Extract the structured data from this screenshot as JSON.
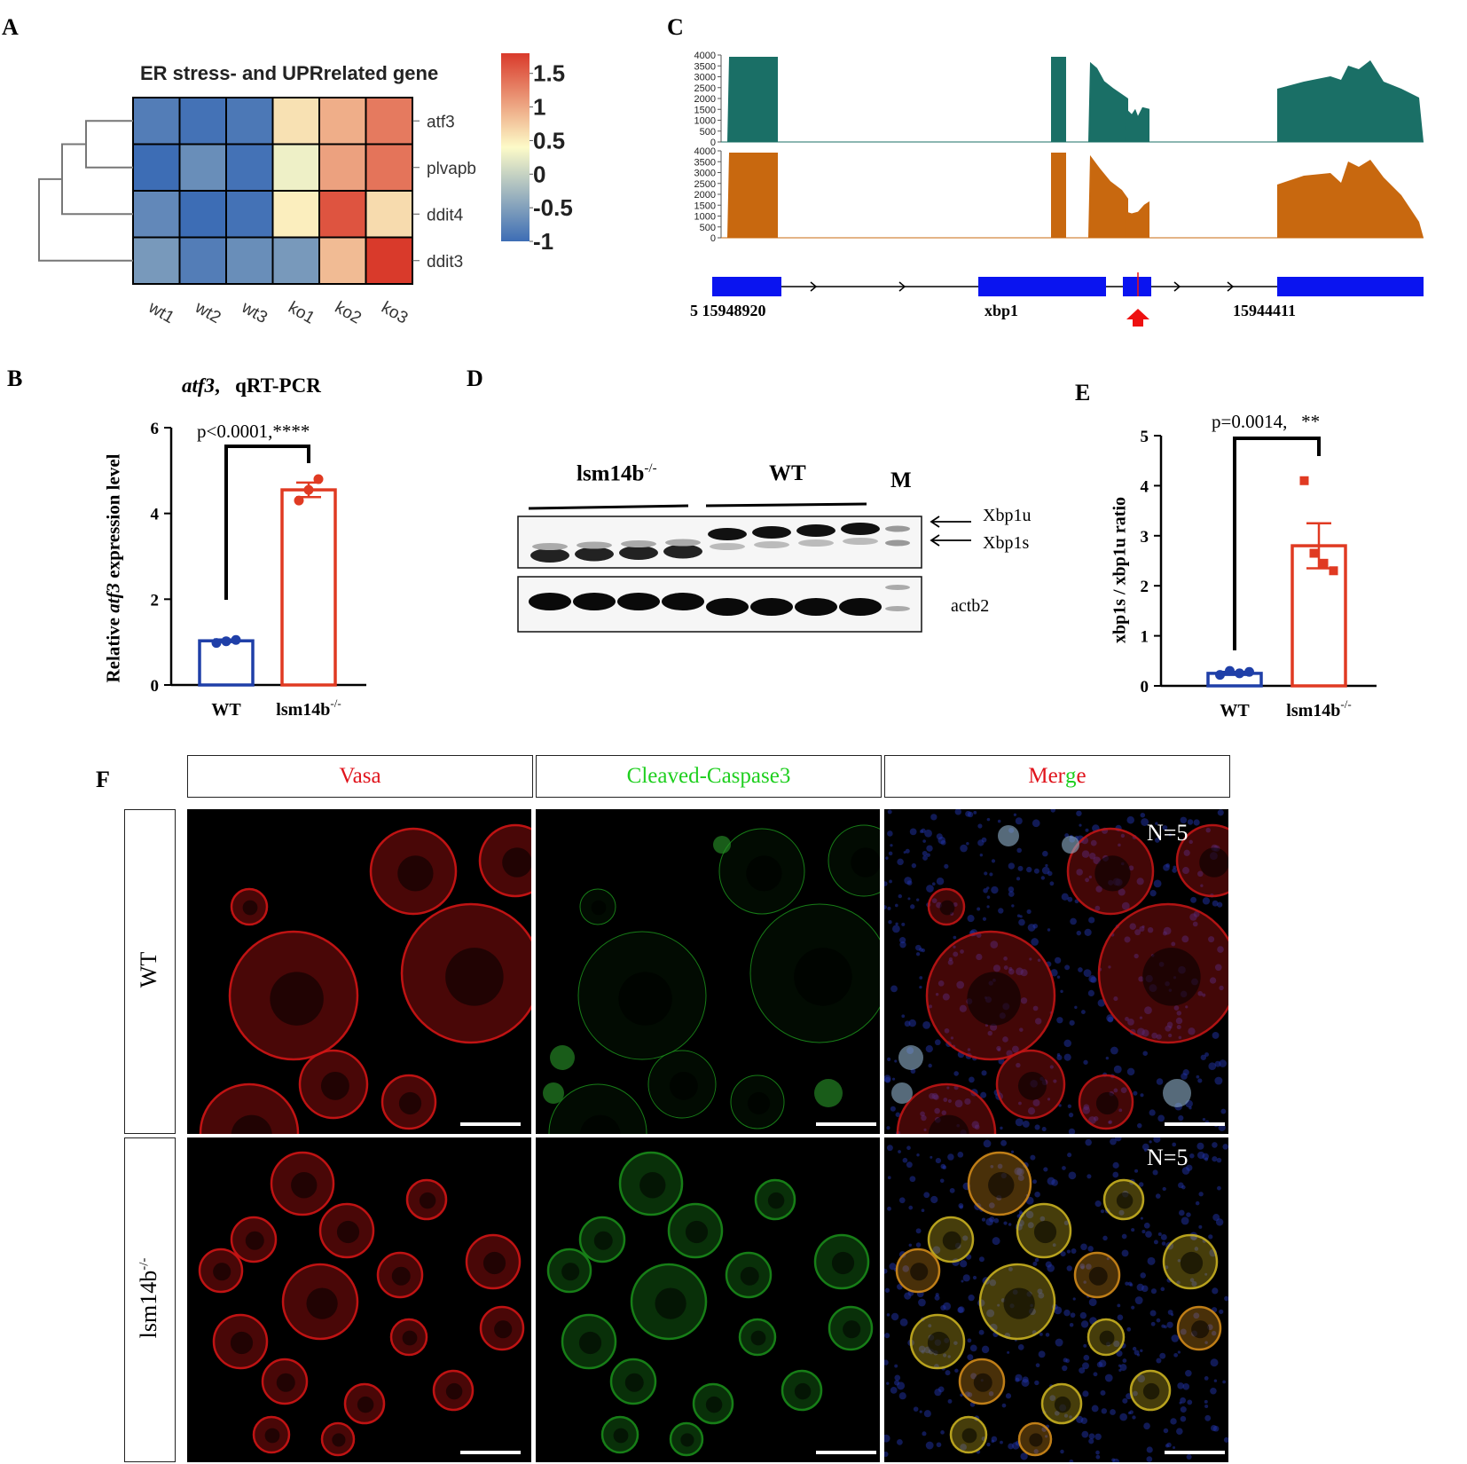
{
  "panels": {
    "a": "A",
    "b": "B",
    "c": "C",
    "d": "D",
    "e": "E",
    "f": "F"
  },
  "heatmap": {
    "title": "ER stress- and UPRrelated gene",
    "rows": [
      "atf3",
      "plvapb",
      "ddit4",
      "ddit3"
    ],
    "cols": [
      "wt1",
      "wt2",
      "wt3",
      "ko1",
      "ko2",
      "ko3"
    ],
    "values": [
      [
        -0.85,
        -0.95,
        -0.9,
        0.5,
        0.9,
        1.3
      ],
      [
        -1.0,
        -0.7,
        -0.95,
        0.2,
        1.0,
        1.35
      ],
      [
        -0.75,
        -1.0,
        -0.95,
        0.4,
        1.6,
        0.55
      ],
      [
        -0.6,
        -0.85,
        -0.7,
        -0.6,
        0.8,
        1.8
      ]
    ],
    "legend_ticks": [
      "1.5",
      "1",
      "0.5",
      "0",
      "-0.5",
      "-1"
    ],
    "colors": {
      "low": "#3d6db5",
      "mid": "#fdfbc8",
      "high": "#d93a2b"
    }
  },
  "barB": {
    "title_italic": "atf3",
    "title_rest": ",   qRT-PCR",
    "ylabel_pre": "Relative ",
    "ylabel_italic": "atf3",
    "ylabel_post": " expression level",
    "yticks": [
      "0",
      "2",
      "4",
      "6"
    ],
    "pvalue": "p<0.0001,****",
    "categories": [
      "WT",
      "lsm14b"
    ],
    "superscript": "-/-"
  },
  "tracks": {
    "yticks": [
      "0",
      "500",
      "1000",
      "1500",
      "2000",
      "2500",
      "3000",
      "3500",
      "4000"
    ],
    "colors": {
      "top": "#1a6f66",
      "bottom": "#c8680f",
      "exon": "#0a14f0",
      "arrow": "#ee1111"
    },
    "coord_left": "5 15948920",
    "gene": "xbp1",
    "coord_right": "15944411"
  },
  "blot": {
    "group1": "lsm14b",
    "group1_sup": "-/-",
    "group2": "WT",
    "marker": "M",
    "band1": "Xbp1u",
    "band2": "Xbp1s",
    "band3": "actb2"
  },
  "barE": {
    "pvalue": "p=0.0014,   **",
    "ylabel": "xbp1s / xbp1u ratio",
    "yticks": [
      "0",
      "1",
      "2",
      "3",
      "4",
      "5"
    ],
    "categories": [
      "WT",
      "lsm14b"
    ],
    "superscript": "-/-"
  },
  "chart_data": [
    {
      "type": "heatmap",
      "title": "ER stress- and UPRrelated gene",
      "rows": [
        "atf3",
        "plvapb",
        "ddit4",
        "ddit3"
      ],
      "cols": [
        "wt1",
        "wt2",
        "wt3",
        "ko1",
        "ko2",
        "ko3"
      ],
      "values": [
        [
          -0.85,
          -0.95,
          -0.9,
          0.5,
          0.9,
          1.3
        ],
        [
          -1.0,
          -0.7,
          -0.95,
          0.2,
          1.0,
          1.35
        ],
        [
          -0.75,
          -1.0,
          -0.95,
          0.4,
          1.6,
          0.55
        ],
        [
          -0.6,
          -0.85,
          -0.7,
          -0.6,
          0.8,
          1.8
        ]
      ],
      "color_range": [
        -1,
        1.8
      ]
    },
    {
      "type": "bar",
      "title": "atf3,   qRT-PCR",
      "categories": [
        "WT",
        "lsm14b-/-"
      ],
      "values": [
        1.03,
        4.55
      ],
      "error": [
        0.03,
        0.17
      ],
      "points": [
        [
          0.98,
          1.02,
          1.05
        ],
        [
          4.3,
          4.55,
          4.8
        ]
      ],
      "ylabel": "Relative atf3 expression level",
      "ylim": [
        0,
        6
      ]
    },
    {
      "type": "area",
      "x_range": [
        15948920,
        15944411
      ],
      "ylim": [
        0,
        4000
      ]
    },
    {
      "type": "bar",
      "categories": [
        "WT",
        "lsm14b-/-"
      ],
      "values": [
        0.25,
        2.8
      ],
      "error": [
        0.03,
        0.45
      ],
      "points": [
        [
          0.22,
          0.3,
          0.25,
          0.28
        ],
        [
          4.1,
          2.65,
          2.45,
          2.3
        ]
      ],
      "ylabel": "xbp1s / xbp1u ratio",
      "ylim": [
        0,
        5
      ]
    }
  ],
  "imaging": {
    "headers": [
      {
        "name": "Vasa",
        "color": "#e0141c"
      },
      {
        "name": "Cleaved-Caspase3",
        "color": "#1fcf1f"
      }
    ],
    "merge_parts": [
      "Mer",
      "g",
      "e"
    ],
    "merge_colors": [
      "#e0141c",
      "#1fcf1f",
      "#e0141c"
    ],
    "rows": [
      "WT",
      "lsm14b"
    ],
    "row_sup": "-/-",
    "n_label": "N=5"
  }
}
